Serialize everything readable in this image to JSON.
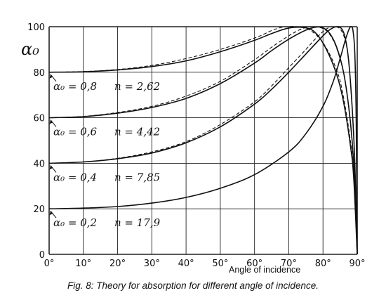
{
  "chart_data": {
    "type": "line",
    "xlabel": "Angle of incidence",
    "ylabel": "α₀",
    "xlim": [
      0,
      90
    ],
    "ylim": [
      0,
      100
    ],
    "grid": true,
    "x_ticks": [
      "0°",
      "10°",
      "20°",
      "30°",
      "40°",
      "50°",
      "60°",
      "70°",
      "80°",
      "90°"
    ],
    "y_ticks": [
      "0",
      "20",
      "40",
      "60",
      "80",
      "100"
    ],
    "curve_labels": [
      {
        "alpha_text": "α₀ = 0,8",
        "n_text": "n = 2,62",
        "y": 80
      },
      {
        "alpha_text": "α₀ = 0,6",
        "n_text": "n = 4,42",
        "y": 60
      },
      {
        "alpha_text": "α₀ = 0,4",
        "n_text": "n = 7,85",
        "y": 40
      },
      {
        "alpha_text": "α₀ = 0,2",
        "n_text": "n = 17,9",
        "y": 20
      }
    ],
    "series": [
      {
        "style": "solid",
        "points": [
          [
            0,
            80
          ],
          [
            10,
            80.2
          ],
          [
            20,
            81
          ],
          [
            30,
            82.5
          ],
          [
            40,
            85
          ],
          [
            50,
            89
          ],
          [
            60,
            94
          ],
          [
            65,
            97
          ],
          [
            70,
            99.4
          ],
          [
            75,
            99.5
          ],
          [
            78,
            97
          ],
          [
            81,
            90
          ],
          [
            84,
            79
          ],
          [
            86,
            67
          ],
          [
            88,
            48
          ],
          [
            89,
            33
          ],
          [
            90,
            0
          ]
        ]
      },
      {
        "style": "dashed",
        "points": [
          [
            0,
            80
          ],
          [
            10,
            80.3
          ],
          [
            20,
            81.2
          ],
          [
            30,
            83
          ],
          [
            40,
            86
          ],
          [
            50,
            90
          ],
          [
            60,
            95
          ],
          [
            65,
            98.3
          ],
          [
            68,
            99.7
          ],
          [
            72,
            100
          ],
          [
            76,
            98.6
          ],
          [
            80,
            93
          ],
          [
            84,
            81
          ],
          [
            86,
            69
          ],
          [
            88,
            50
          ],
          [
            89,
            34
          ],
          [
            90,
            0
          ]
        ]
      },
      {
        "style": "solid",
        "points": [
          [
            0,
            60
          ],
          [
            10,
            60.5
          ],
          [
            20,
            62
          ],
          [
            30,
            64.5
          ],
          [
            40,
            68.5
          ],
          [
            50,
            75
          ],
          [
            60,
            84
          ],
          [
            65,
            89.5
          ],
          [
            70,
            94.5
          ],
          [
            75,
            98.5
          ],
          [
            78,
            99.8
          ],
          [
            80,
            99.5
          ],
          [
            82,
            97
          ],
          [
            84,
            91
          ],
          [
            86,
            80
          ],
          [
            87.5,
            65
          ],
          [
            88.5,
            50
          ],
          [
            89.3,
            30
          ],
          [
            90,
            0
          ]
        ]
      },
      {
        "style": "dashed",
        "points": [
          [
            0,
            60
          ],
          [
            10,
            60.6
          ],
          [
            20,
            62.3
          ],
          [
            30,
            65
          ],
          [
            40,
            69.5
          ],
          [
            50,
            76
          ],
          [
            60,
            85.5
          ],
          [
            65,
            91
          ],
          [
            70,
            96
          ],
          [
            74,
            99.2
          ],
          [
            77,
            100
          ],
          [
            80,
            99.2
          ],
          [
            82,
            96.5
          ],
          [
            84,
            90.5
          ],
          [
            86,
            80
          ],
          [
            87.5,
            65
          ],
          [
            88.5,
            50
          ],
          [
            89.3,
            30
          ],
          [
            90,
            0
          ]
        ]
      },
      {
        "style": "solid",
        "points": [
          [
            0,
            40
          ],
          [
            10,
            40.6
          ],
          [
            20,
            42
          ],
          [
            30,
            44.5
          ],
          [
            40,
            49
          ],
          [
            50,
            56
          ],
          [
            60,
            66
          ],
          [
            65,
            72.5
          ],
          [
            70,
            80
          ],
          [
            75,
            88
          ],
          [
            80,
            96
          ],
          [
            82,
            98.7
          ],
          [
            84,
            100
          ],
          [
            85.5,
            99
          ],
          [
            86.5,
            95
          ],
          [
            87.5,
            85
          ],
          [
            88.5,
            65
          ],
          [
            89.3,
            40
          ],
          [
            90,
            0
          ]
        ]
      },
      {
        "style": "dashed",
        "points": [
          [
            0,
            40
          ],
          [
            10,
            40.6
          ],
          [
            20,
            42.2
          ],
          [
            30,
            45
          ],
          [
            40,
            49.5
          ],
          [
            50,
            57
          ],
          [
            60,
            67
          ],
          [
            65,
            74
          ],
          [
            70,
            82
          ],
          [
            75,
            90
          ],
          [
            78,
            95
          ],
          [
            81,
            99
          ],
          [
            83,
            100
          ],
          [
            85,
            99
          ],
          [
            86.5,
            94
          ],
          [
            87.5,
            85
          ],
          [
            88.5,
            65
          ],
          [
            89.3,
            40
          ],
          [
            90,
            0
          ]
        ]
      },
      {
        "style": "solid",
        "points": [
          [
            0,
            20
          ],
          [
            10,
            20.3
          ],
          [
            20,
            21
          ],
          [
            30,
            22.5
          ],
          [
            40,
            25
          ],
          [
            50,
            29
          ],
          [
            60,
            35
          ],
          [
            70,
            45
          ],
          [
            75,
            53
          ],
          [
            80,
            65
          ],
          [
            83,
            76
          ],
          [
            85,
            86
          ],
          [
            86.5,
            94
          ],
          [
            87.5,
            98.5
          ],
          [
            88.2,
            100
          ],
          [
            88.8,
            98
          ],
          [
            89.3,
            88
          ],
          [
            89.7,
            60
          ],
          [
            90,
            0
          ]
        ]
      }
    ]
  },
  "caption": "Fig. 8: Theory for absorption for different angle of incidence."
}
